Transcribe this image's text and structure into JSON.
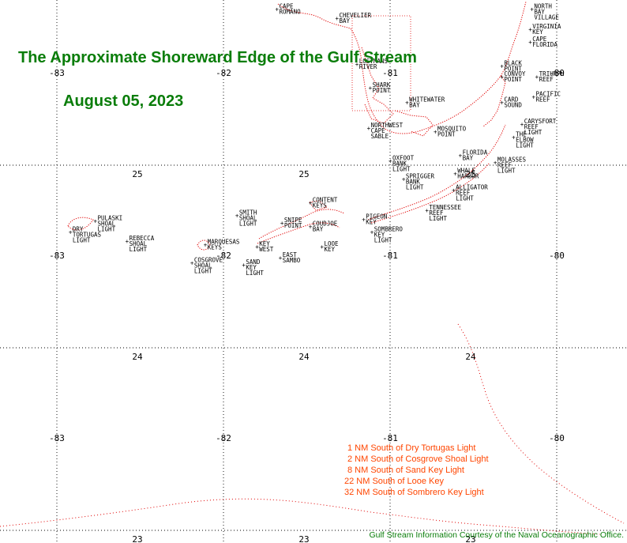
{
  "title": "The Approximate Shoreward Edge of the Gulf Stream",
  "date": "August 05, 2023",
  "credit": "Gulf Stream Information Courtesy of the Naval Oceanographic Office.",
  "legend": [
    "1 NM South of Dry Tortugas Light",
    "2 NM South of Cosgrove Shoal Light",
    "8 NM South of Sand Key Light",
    "22 NM South of Looe Key",
    "32 NM South of Sombrero Key Light"
  ],
  "grid": {
    "longitudes": [
      -83,
      -82,
      -81,
      -80
    ],
    "latitudes": [
      25,
      24,
      23
    ]
  },
  "places": [
    {
      "name": "CAPE ROMANO",
      "lon": -81.68,
      "lat": 25.85
    },
    {
      "name": "CHEVELIER BAY",
      "lon": -81.32,
      "lat": 25.8
    },
    {
      "name": "LOSTMANS RIVER",
      "lon": -81.2,
      "lat": 25.55
    },
    {
      "name": "SHARK POINT",
      "lon": -81.12,
      "lat": 25.42
    },
    {
      "name": "WHITEWATER BAY",
      "lon": -80.9,
      "lat": 25.34
    },
    {
      "name": "NORTHWEST CAPE SABLE",
      "lon": -81.13,
      "lat": 25.2
    },
    {
      "name": "MOSQUITO POINT",
      "lon": -80.73,
      "lat": 25.18
    },
    {
      "name": "FLORIDA BAY",
      "lon": -80.58,
      "lat": 25.05
    },
    {
      "name": "NORTH BAY VILLAGE",
      "lon": -80.15,
      "lat": 25.85
    },
    {
      "name": "VIRGINIA KEY",
      "lon": -80.16,
      "lat": 25.74
    },
    {
      "name": "CAPE FLORIDA",
      "lon": -80.16,
      "lat": 25.67
    },
    {
      "name": "BLACK POINT",
      "lon": -80.33,
      "lat": 25.54
    },
    {
      "name": "TRIUMPH REEF",
      "lon": -80.12,
      "lat": 25.48
    },
    {
      "name": "CONVOY POINT",
      "lon": -80.33,
      "lat": 25.48
    },
    {
      "name": "PACIFIC REEF",
      "lon": -80.14,
      "lat": 25.37
    },
    {
      "name": "CARD SOUND",
      "lon": -80.33,
      "lat": 25.34
    },
    {
      "name": "CARYSFORT REEF LIGHT",
      "lon": -80.21,
      "lat": 25.22
    },
    {
      "name": "THE ELBOW LIGHT",
      "lon": -80.26,
      "lat": 25.15
    },
    {
      "name": "MOLASSES REEF LIGHT",
      "lon": -80.37,
      "lat": 25.01
    },
    {
      "name": "OXFOOT BANK LIGHT",
      "lon": -81.0,
      "lat": 25.02
    },
    {
      "name": "WHALE HARBOR",
      "lon": -80.61,
      "lat": 24.95
    },
    {
      "name": "SPRIGGER BANK LIGHT",
      "lon": -80.92,
      "lat": 24.92
    },
    {
      "name": "ALLIGATOR REEF LIGHT",
      "lon": -80.62,
      "lat": 24.86
    },
    {
      "name": "TENNESSEE REEF LIGHT",
      "lon": -80.78,
      "lat": 24.75
    },
    {
      "name": "CONTENT KEYS",
      "lon": -81.48,
      "lat": 24.79
    },
    {
      "name": "SMITH SHOAL LIGHT",
      "lon": -81.92,
      "lat": 24.72
    },
    {
      "name": "SNIPE POINT",
      "lon": -81.65,
      "lat": 24.68
    },
    {
      "name": "COUDJOE BAY",
      "lon": -81.48,
      "lat": 24.66
    },
    {
      "name": "PIGEON KEY",
      "lon": -81.16,
      "lat": 24.7
    },
    {
      "name": "SOMBRERO KEY LIGHT",
      "lon": -81.11,
      "lat": 24.63
    },
    {
      "name": "PULASKI SHOAL LIGHT",
      "lon": -82.77,
      "lat": 24.69
    },
    {
      "name": "DRY TORTUGAS LIGHT",
      "lon": -82.92,
      "lat": 24.63
    },
    {
      "name": "REBECCA SHOAL LIGHT",
      "lon": -82.58,
      "lat": 24.58
    },
    {
      "name": "MARQUESAS KEYS",
      "lon": -82.11,
      "lat": 24.56
    },
    {
      "name": "KEY WEST",
      "lon": -81.8,
      "lat": 24.55
    },
    {
      "name": "LOOE KEY",
      "lon": -81.41,
      "lat": 24.55
    },
    {
      "name": "EAST SAMBO",
      "lon": -81.66,
      "lat": 24.49
    },
    {
      "name": "COSGROVE SHOAL LIGHT",
      "lon": -82.19,
      "lat": 24.46
    },
    {
      "name": "SAND KEY LIGHT",
      "lon": -81.88,
      "lat": 24.45
    }
  ]
}
